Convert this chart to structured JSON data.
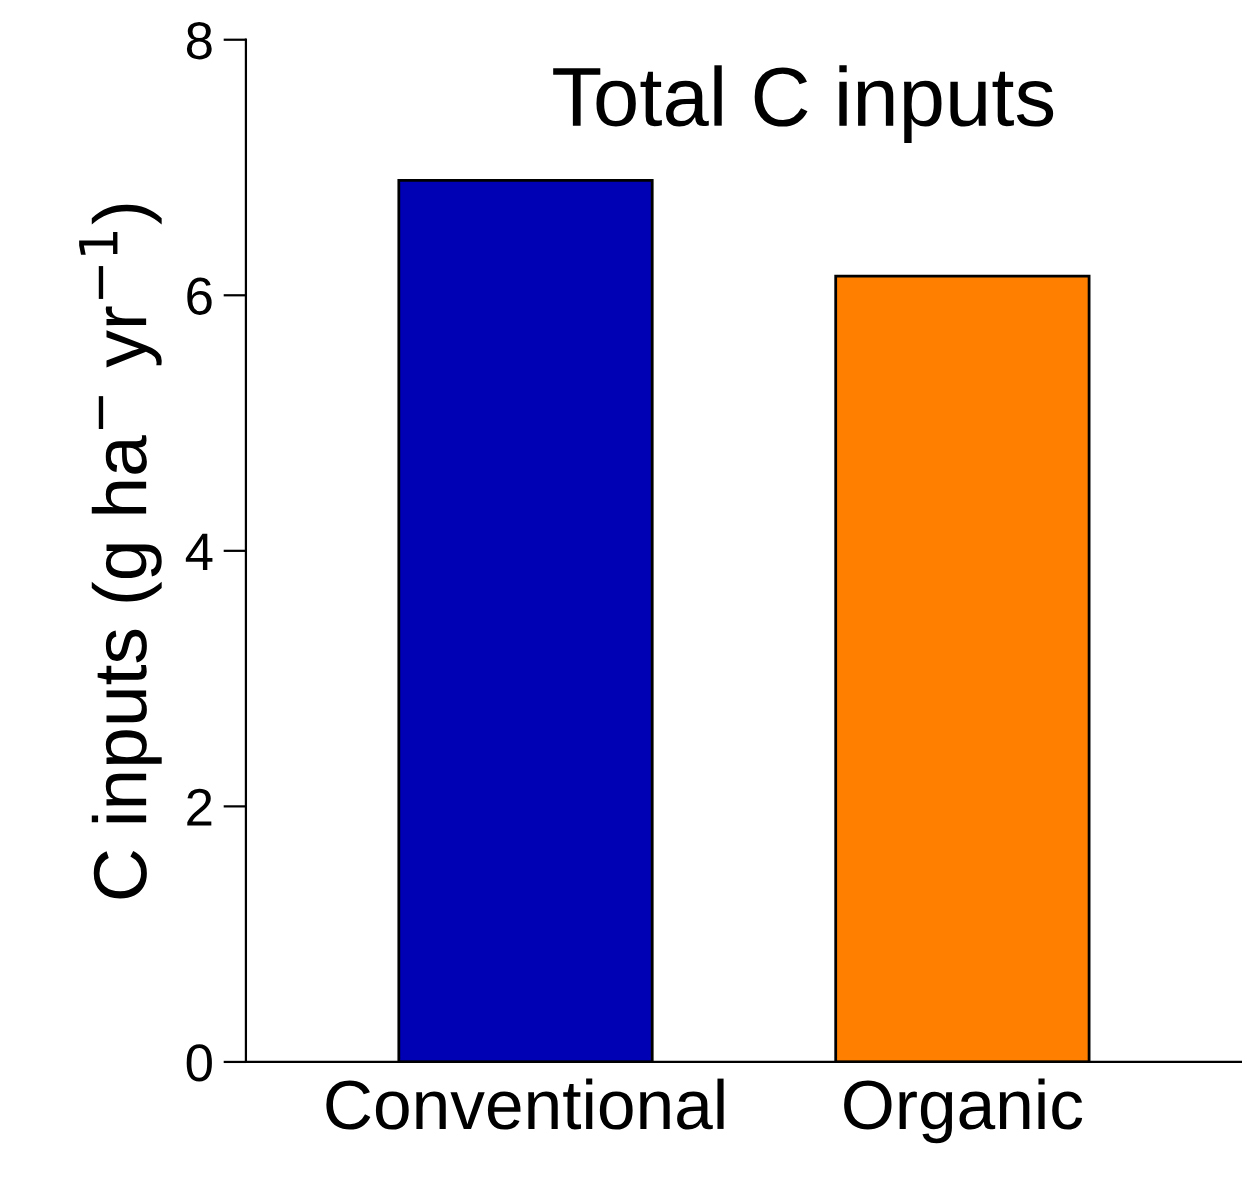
{
  "chart_data": {
    "type": "bar",
    "title": "Total C inputs",
    "ylabel": "C inputs (g ha$^{−}$ yr$^{−1}$)",
    "categories": [
      "Conventional",
      "Organic"
    ],
    "values": [
      6.9,
      6.15
    ],
    "colors": [
      "#0000b4",
      "#ff8000"
    ],
    "ylim": [
      0,
      8
    ],
    "yticks": [
      0,
      2,
      4,
      6,
      8
    ],
    "grid": false
  }
}
